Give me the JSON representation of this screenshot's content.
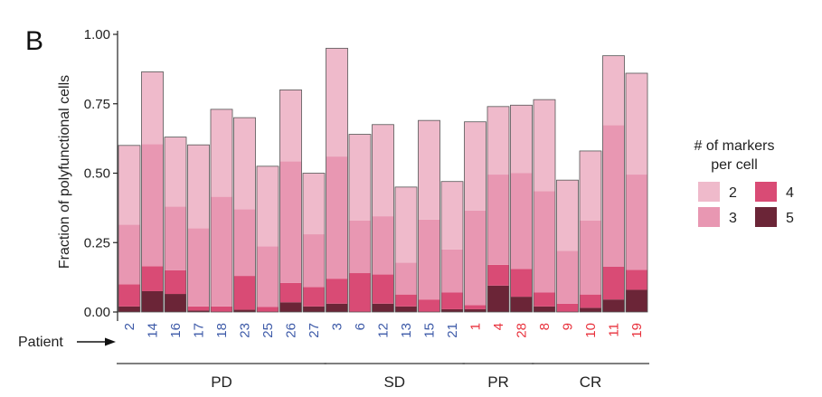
{
  "panel_label": "B",
  "patient_arrow_label": "Patient",
  "colors": {
    "m2": "#efbacb",
    "m3": "#e897b2",
    "m4": "#d94b75",
    "m5": "#6b2537",
    "pt_blue": "#3d5aa8",
    "pt_red": "#e8313c"
  },
  "legend": {
    "title_line1": "# of markers",
    "title_line2": "per cell",
    "items": [
      {
        "label": "2",
        "color_key": "m2"
      },
      {
        "label": "3",
        "color_key": "m3"
      },
      {
        "label": "4",
        "color_key": "m4"
      },
      {
        "label": "5",
        "color_key": "m5"
      }
    ]
  },
  "chart_data": {
    "type": "bar",
    "stacked": true,
    "ylabel": "Fraction of polyfunctional cells",
    "ylim": [
      0,
      1
    ],
    "yticks": [
      "0.00",
      "0.25",
      "0.50",
      "0.75",
      "1.00"
    ],
    "grid": false,
    "legend_position": "right",
    "groups": [
      {
        "label": "PD",
        "patients": [
          "2",
          "14",
          "16",
          "17",
          "18",
          "23",
          "25",
          "26",
          "27"
        ],
        "color_key": "pt_blue"
      },
      {
        "label": "SD",
        "patients": [
          "3",
          "6",
          "12",
          "13",
          "15",
          "21"
        ],
        "color_key": "pt_blue"
      },
      {
        "label": "PR",
        "patients": [
          "1",
          "4",
          "28"
        ],
        "color_key": "pt_red"
      },
      {
        "label": "CR",
        "patients": [
          "8",
          "9",
          "10",
          "11",
          "19"
        ],
        "color_key": "pt_red"
      }
    ],
    "categories": [
      "2",
      "14",
      "16",
      "17",
      "18",
      "23",
      "25",
      "26",
      "27",
      "3",
      "6",
      "12",
      "13",
      "15",
      "21",
      "1",
      "4",
      "28",
      "8",
      "9",
      "10",
      "11",
      "19"
    ],
    "series": [
      {
        "name": "5",
        "values": [
          0.02,
          0.075,
          0.065,
          0.005,
          0,
          0.008,
          0,
          0.035,
          0.02,
          0.03,
          0,
          0.03,
          0.02,
          0,
          0.01,
          0.01,
          0.095,
          0.055,
          0.02,
          0,
          0.015,
          0.045,
          0.08
        ]
      },
      {
        "name": "4",
        "values": [
          0.08,
          0.09,
          0.085,
          0.015,
          0.02,
          0.122,
          0.018,
          0.07,
          0.07,
          0.09,
          0.14,
          0.105,
          0.043,
          0.045,
          0.06,
          0.015,
          0.075,
          0.1,
          0.05,
          0.03,
          0.048,
          0.118,
          0.072
        ]
      },
      {
        "name": "3",
        "values": [
          0.215,
          0.44,
          0.23,
          0.282,
          0.395,
          0.24,
          0.219,
          0.438,
          0.19,
          0.44,
          0.19,
          0.21,
          0.115,
          0.288,
          0.155,
          0.34,
          0.325,
          0.345,
          0.365,
          0.19,
          0.267,
          0.51,
          0.343
        ]
      },
      {
        "name": "2",
        "values": [
          0.285,
          0.26,
          0.25,
          0.3,
          0.315,
          0.33,
          0.288,
          0.257,
          0.22,
          0.39,
          0.31,
          0.33,
          0.272,
          0.357,
          0.245,
          0.32,
          0.245,
          0.245,
          0.33,
          0.255,
          0.25,
          0.25,
          0.365
        ]
      }
    ]
  }
}
